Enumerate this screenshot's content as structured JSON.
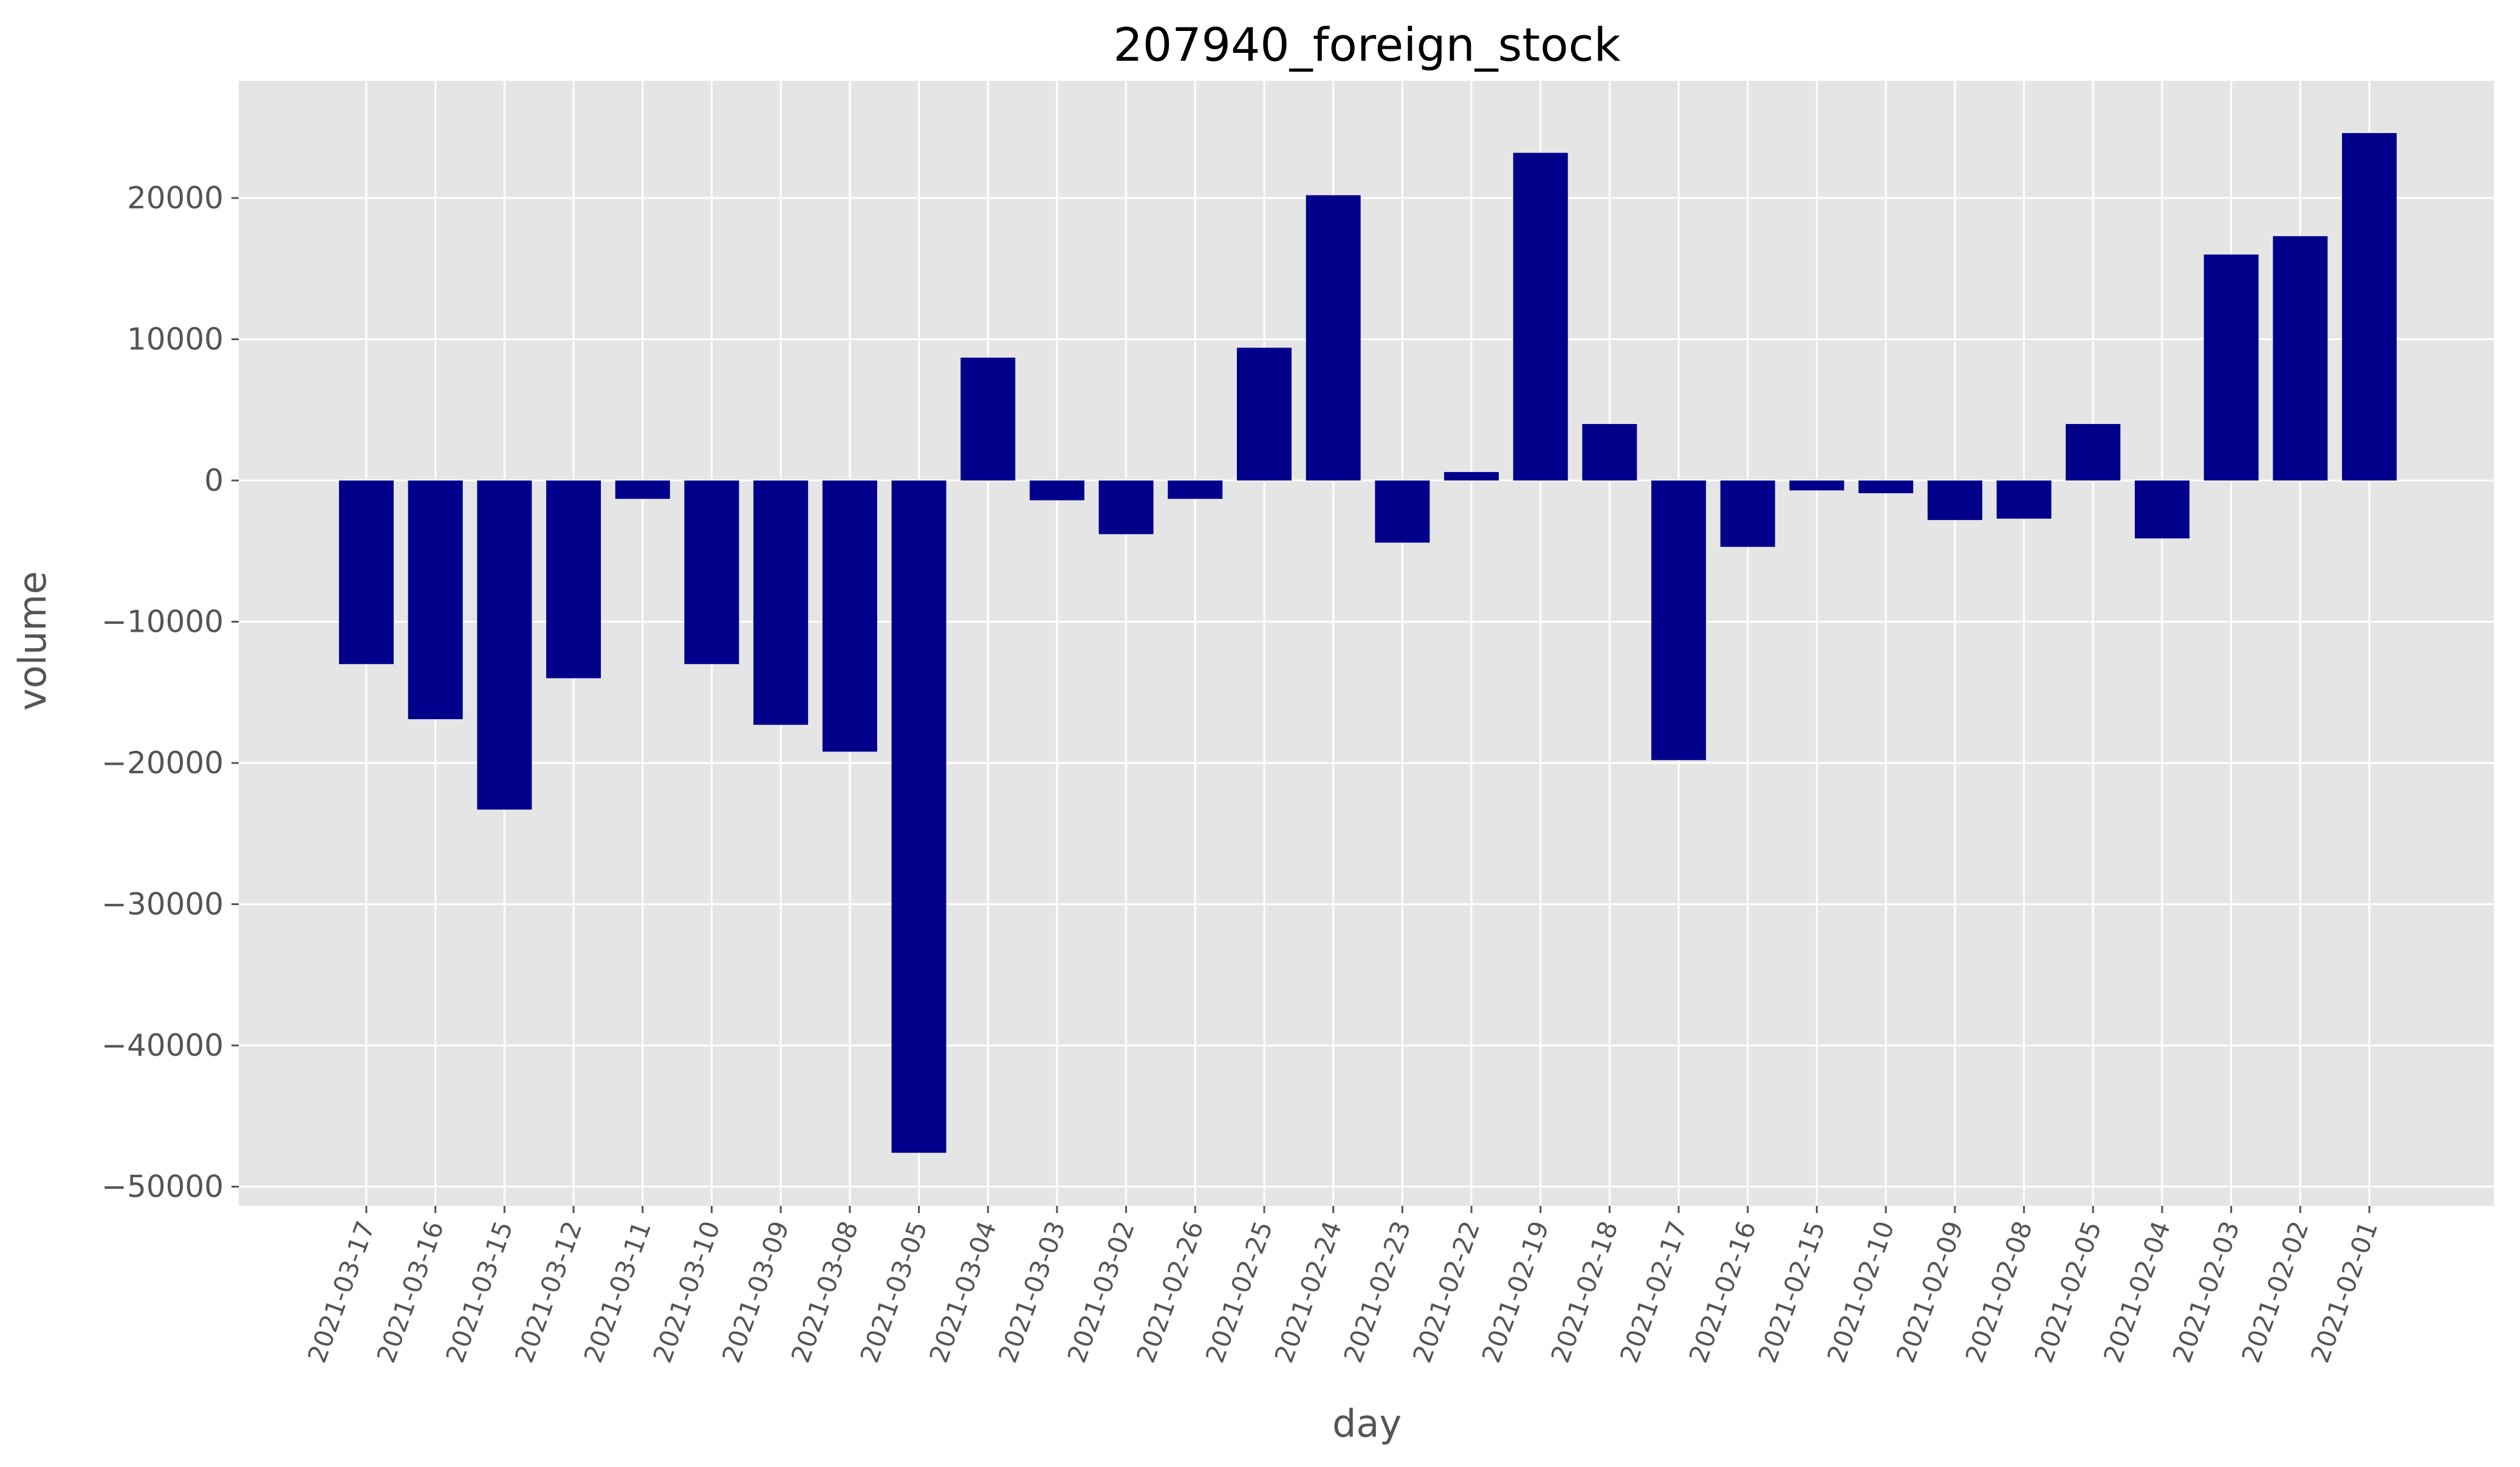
{
  "chart_data": {
    "type": "bar",
    "title": "207940_foreign_stock",
    "xlabel": "day",
    "ylabel": "volume",
    "ylim": [
      -51500,
      28500
    ],
    "yticks": [
      20000,
      10000,
      0,
      -10000,
      -20000,
      -30000,
      -40000,
      -50000
    ],
    "ytick_labels": [
      "20000",
      "10000",
      "0",
      "−10000",
      "−20000",
      "−30000",
      "−40000",
      "−50000"
    ],
    "categories": [
      "2021-03-17",
      "2021-03-16",
      "2021-03-15",
      "2021-03-12",
      "2021-03-11",
      "2021-03-10",
      "2021-03-09",
      "2021-03-08",
      "2021-03-05",
      "2021-03-04",
      "2021-03-03",
      "2021-03-02",
      "2021-02-26",
      "2021-02-25",
      "2021-02-24",
      "2021-02-23",
      "2021-02-22",
      "2021-02-19",
      "2021-02-18",
      "2021-02-17",
      "2021-02-16",
      "2021-02-15",
      "2021-02-10",
      "2021-02-09",
      "2021-02-08",
      "2021-02-05",
      "2021-02-04",
      "2021-02-03",
      "2021-02-02",
      "2021-02-01"
    ],
    "values": [
      -13000,
      -16900,
      -23300,
      -14000,
      -1300,
      -13000,
      -17300,
      -19200,
      -47600,
      8700,
      -1400,
      -3800,
      -1300,
      9400,
      20200,
      -4400,
      600,
      23200,
      4000,
      -19800,
      -4700,
      -700,
      -900,
      -2800,
      -2700,
      4000,
      -4100,
      16000,
      17300,
      24600
    ],
    "bar_color": "#00008b",
    "background_color": "#e5e5e5",
    "grid_color": "#ffffff",
    "grid": true,
    "style": "ggplot"
  }
}
